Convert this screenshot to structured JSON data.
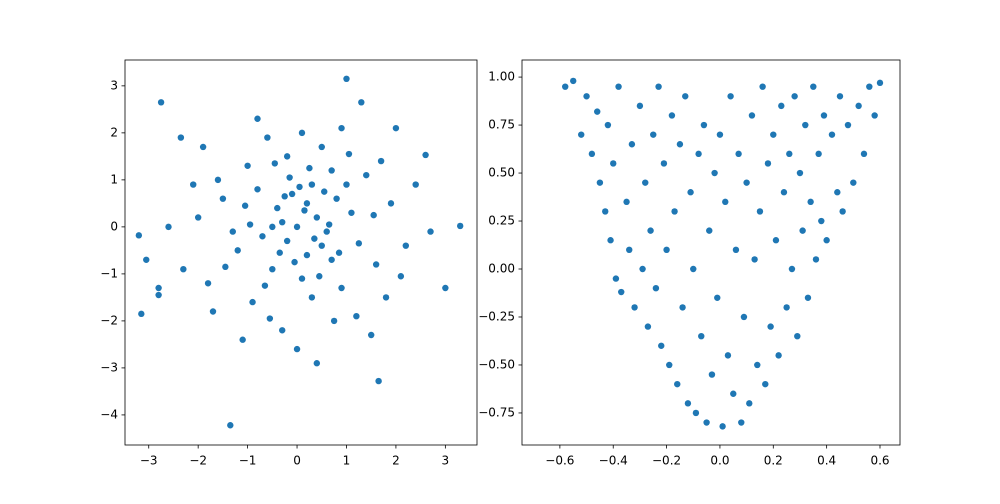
{
  "chart_data": [
    {
      "type": "scatter",
      "color": "#1f77b4",
      "x": [
        1,
        -2.75,
        1.3,
        -1.35,
        3.3,
        -3.15,
        -3.2,
        3,
        1.65,
        2.6,
        -3.05,
        -2.8,
        -2.8,
        -2.35,
        0.2,
        -0.3,
        0.5,
        -0.8,
        1.1,
        -1.2,
        0.1,
        0.7,
        -0.5,
        0.3,
        -1.5,
        1.6,
        0.0,
        -0.1,
        0.4,
        -0.7,
        0.9,
        -0.2,
        1.4,
        -1.8,
        0.6,
        -0.4,
        0.2,
        1.9,
        -1.0,
        0.8,
        -0.9,
        0.1,
        -0.3,
        1.2,
        -2.0,
        2.2,
        0.5,
        -0.6,
        0.3,
        -1.3,
        1.0,
        -0.2,
        0.7,
        -1.6,
        1.7,
        -0.5,
        0.0,
        0.4,
        -1.1,
        1.5,
        -2.3,
        2.4,
        -0.8,
        0.9,
        2.0,
        -1.9,
        0.15,
        -0.35,
        0.65,
        -0.15,
        1.25,
        -1.05,
        0.45,
        -0.65,
        0.25,
        1.55,
        -1.45,
        0.85,
        -0.25,
        2.7,
        -2.6,
        0.55,
        -0.45,
        1.8,
        -1.7,
        0.35,
        -0.05,
        1.05,
        -0.95,
        0.05,
        2.1,
        -2.1,
        0.75,
        -0.55
      ],
      "values": [
        3.15,
        2.65,
        2.65,
        -4.22,
        0.02,
        -1.85,
        -0.18,
        -1.3,
        -3.28,
        1.53,
        -0.7,
        -1.3,
        -1.45,
        1.9,
        0.5,
        0.1,
        -0.4,
        0.8,
        0.3,
        -0.5,
        -1.1,
        1.2,
        -0.9,
        0.9,
        0.6,
        -0.8,
        0.0,
        0.7,
        0.2,
        -0.2,
        -1.3,
        1.5,
        1.1,
        -1.2,
        -0.1,
        0.4,
        -0.6,
        0.5,
        1.3,
        0.6,
        -1.6,
        2.0,
        -2.2,
        -1.9,
        0.2,
        -0.4,
        1.7,
        1.9,
        -1.5,
        -0.1,
        0.9,
        -0.3,
        -0.7,
        1.0,
        1.4,
        0.0,
        -2.6,
        -2.9,
        -2.4,
        -2.3,
        -0.9,
        0.9,
        2.3,
        2.1,
        2.1,
        1.7,
        0.35,
        -0.55,
        0.05,
        1.05,
        -0.35,
        0.45,
        -1.05,
        -1.25,
        1.25,
        0.25,
        -0.85,
        -0.55,
        0.65,
        -0.1,
        0.0,
        0.75,
        1.35,
        -1.5,
        -1.8,
        -0.25,
        -0.75,
        1.55,
        0.05,
        0.85,
        -1.05,
        0.9,
        -2.0,
        -1.95
      ],
      "xlim": [
        -3.48,
        3.64
      ],
      "ylim": [
        -4.64,
        3.55
      ],
      "xticks": [
        {
          "value": -3,
          "label": "−3"
        },
        {
          "value": -2,
          "label": "−2"
        },
        {
          "value": -1,
          "label": "−1"
        },
        0,
        1,
        2,
        3
      ],
      "yticks": [
        {
          "value": -4,
          "label": "−4"
        },
        {
          "value": -3,
          "label": "−3"
        },
        {
          "value": -2,
          "label": "−2"
        },
        {
          "value": -1,
          "label": "−1"
        },
        0,
        1,
        2,
        3
      ]
    },
    {
      "type": "scatter",
      "color": "#1f77b4",
      "x": [
        -0.58,
        -0.55,
        -0.52,
        -0.5,
        -0.48,
        -0.46,
        -0.45,
        -0.43,
        -0.42,
        -0.41,
        -0.4,
        -0.39,
        -0.38,
        -0.37,
        -0.35,
        -0.34,
        -0.33,
        -0.32,
        -0.3,
        -0.29,
        -0.28,
        -0.27,
        -0.26,
        -0.25,
        -0.24,
        -0.23,
        -0.22,
        -0.21,
        -0.2,
        -0.19,
        -0.18,
        -0.17,
        -0.16,
        -0.15,
        -0.14,
        -0.13,
        -0.12,
        -0.11,
        -0.1,
        -0.09,
        -0.08,
        -0.07,
        -0.06,
        -0.05,
        -0.04,
        -0.03,
        -0.02,
        -0.01,
        0,
        0.01,
        0.02,
        0.03,
        0.04,
        0.05,
        0.06,
        0.07,
        0.08,
        0.09,
        0.1,
        0.11,
        0.12,
        0.13,
        0.14,
        0.15,
        0.16,
        0.17,
        0.18,
        0.19,
        0.2,
        0.21,
        0.22,
        0.23,
        0.24,
        0.25,
        0.26,
        0.27,
        0.28,
        0.29,
        0.3,
        0.31,
        0.32,
        0.33,
        0.34,
        0.35,
        0.36,
        0.37,
        0.38,
        0.39,
        0.4,
        0.42,
        0.44,
        0.45,
        0.46,
        0.48,
        0.5,
        0.52,
        0.54,
        0.56,
        0.58,
        0.6
      ],
      "values": [
        0.95,
        0.98,
        0.7,
        0.9,
        0.6,
        0.82,
        0.45,
        0.3,
        0.75,
        0.15,
        0.55,
        -0.05,
        0.95,
        -0.12,
        0.35,
        0.1,
        0.65,
        -0.2,
        0.85,
        0.0,
        0.45,
        -0.3,
        0.2,
        0.7,
        -0.1,
        0.95,
        -0.4,
        0.55,
        0.1,
        -0.5,
        0.8,
        0.3,
        -0.6,
        0.65,
        -0.2,
        0.9,
        -0.7,
        0.4,
        0.0,
        -0.75,
        0.6,
        -0.35,
        0.75,
        -0.8,
        0.2,
        -0.55,
        0.5,
        -0.15,
        0.7,
        -0.82,
        0.35,
        -0.45,
        0.9,
        -0.65,
        0.1,
        0.6,
        -0.8,
        -0.25,
        0.45,
        -0.7,
        0.8,
        0.05,
        -0.5,
        0.3,
        0.95,
        -0.6,
        0.55,
        -0.3,
        0.7,
        0.15,
        -0.45,
        0.85,
        0.4,
        -0.2,
        0.6,
        0.0,
        0.9,
        -0.35,
        0.5,
        0.2,
        0.75,
        -0.15,
        0.35,
        0.95,
        0.05,
        0.6,
        0.25,
        0.8,
        0.15,
        0.7,
        0.4,
        0.9,
        0.3,
        0.75,
        0.45,
        0.85,
        0.6,
        0.95,
        0.8,
        0.97
      ],
      "xlim": [
        -0.742,
        0.675
      ],
      "ylim": [
        -0.917,
        1.089
      ],
      "xticks": [
        {
          "value": -0.6,
          "label": "−0.6"
        },
        {
          "value": -0.4,
          "label": "−0.4"
        },
        {
          "value": -0.2,
          "label": "−0.2"
        },
        {
          "value": 0,
          "label": "0.0"
        },
        0.2,
        0.4,
        0.6
      ],
      "yticks": [
        {
          "value": -0.75,
          "label": "−0.75"
        },
        {
          "value": -0.5,
          "label": "−0.50"
        },
        {
          "value": -0.25,
          "label": "−0.25"
        },
        {
          "value": 0,
          "label": "0.00"
        },
        0.25,
        {
          "value": 0.5,
          "label": "0.50"
        },
        0.75,
        {
          "value": 1,
          "label": "1.00"
        }
      ]
    }
  ]
}
